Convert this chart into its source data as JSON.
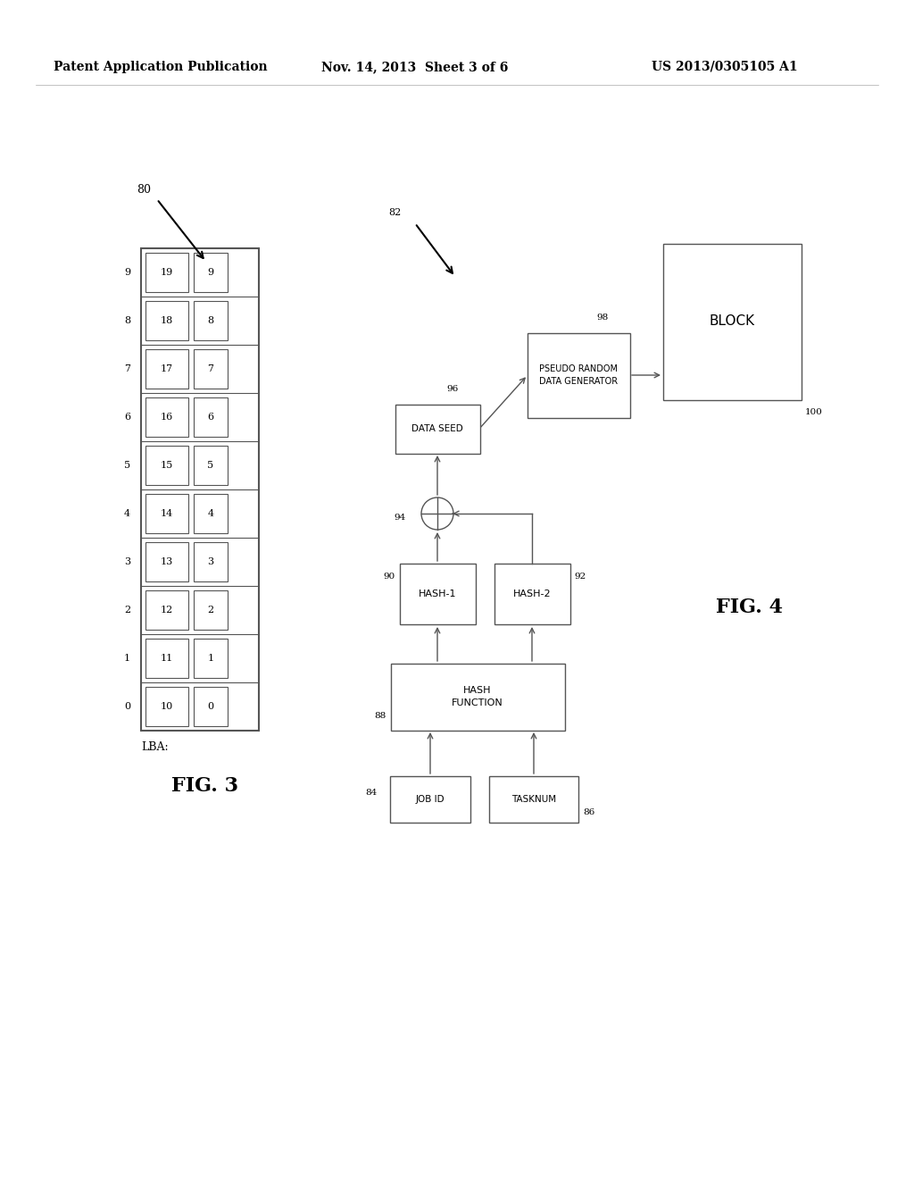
{
  "bg_color": "#ffffff",
  "header_text": "Patent Application Publication",
  "header_date": "Nov. 14, 2013  Sheet 3 of 6",
  "header_patent": "US 2013/0305105 A1",
  "fig3_label": "FIG. 3",
  "fig4_label": "FIG. 4",
  "label_80": "80",
  "label_82": "82",
  "label_84": "84",
  "label_86": "86",
  "label_88": "88",
  "label_90": "90",
  "label_92": "92",
  "label_94": "94",
  "label_96": "96",
  "label_98": "98",
  "label_100": "100",
  "lba_label": "LBA:",
  "lba_numbers": [
    9,
    8,
    7,
    6,
    5,
    4,
    3,
    2,
    1,
    0
  ],
  "col1_values": [
    19,
    18,
    17,
    16,
    15,
    14,
    13,
    12,
    11,
    10
  ],
  "col2_values": [
    9,
    8,
    7,
    6,
    5,
    4,
    3,
    2,
    1,
    0
  ],
  "box_job_id": "JOB ID",
  "box_tasknum": "TASKNUM",
  "box_hash_func": "HASH\nFUNCTION",
  "box_hash1": "HASH-1",
  "box_hash2": "HASH-2",
  "box_data_seed": "DATA SEED",
  "box_prng": "PSEUDO RANDOM\nDATA GENERATOR",
  "box_block": "BLOCK",
  "line_color": "#555555",
  "box_fill": "#ffffff",
  "box_edge": "#555555",
  "text_color": "#000000"
}
